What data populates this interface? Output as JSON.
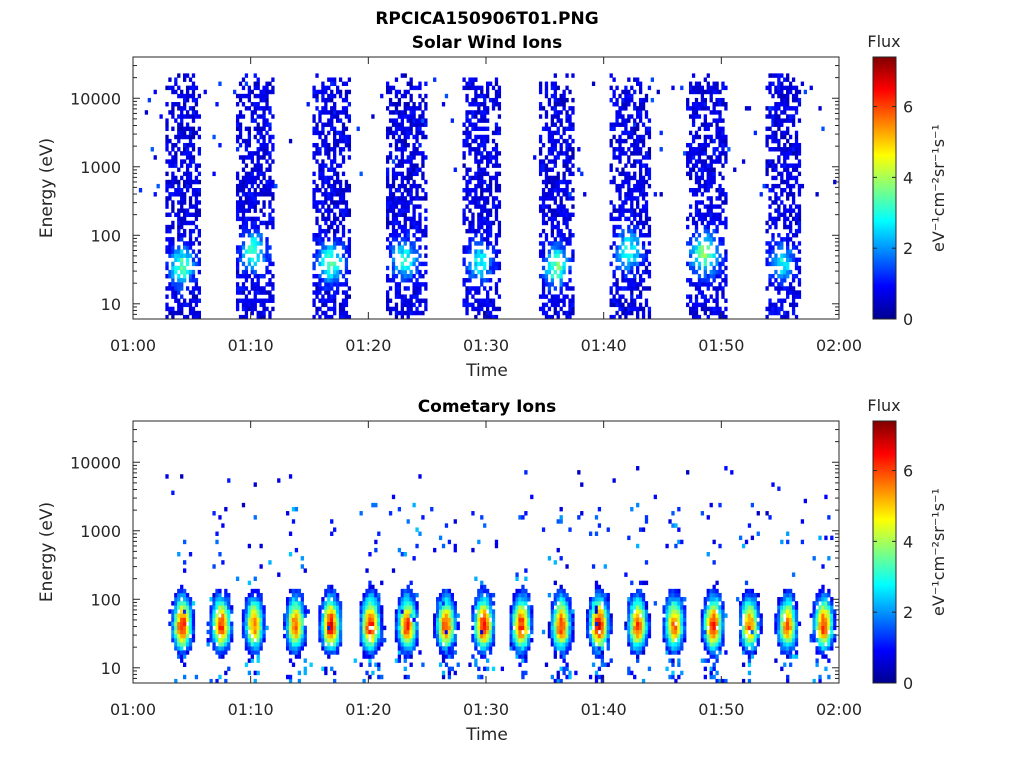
{
  "figure_title": "RPCICA150906T01.PNG",
  "chart_data": [
    {
      "type": "heatmap",
      "title": "Solar Wind Ions",
      "xlabel": "Time",
      "ylabel": "Energy (eV)",
      "x_range": [
        "01:00",
        "02:00"
      ],
      "x_ticks": [
        "01:00",
        "01:10",
        "01:20",
        "01:30",
        "01:40",
        "01:50",
        "02:00"
      ],
      "y_scale": "log",
      "y_range": [
        6,
        40000
      ],
      "y_ticks": [
        "10",
        "100",
        "1000",
        "10000"
      ],
      "grid": false,
      "colorbar": {
        "title": "Flux",
        "label": "eV⁻¹cm⁻²sr⁻¹s⁻¹",
        "range": [
          0,
          7.4
        ],
        "ticks": [
          "0",
          "2",
          "4",
          "6"
        ],
        "colormap": "jet"
      },
      "bursts": [
        {
          "start_min": 2.8,
          "end_min": 5.8,
          "emax_ev": 15000,
          "peak_flux": 3.0,
          "peak_energy_ev": 35
        },
        {
          "start_min": 8.8,
          "end_min": 12.0,
          "emax_ev": 15000,
          "peak_flux": 2.8,
          "peak_energy_ev": 60
        },
        {
          "start_min": 15.3,
          "end_min": 18.6,
          "emax_ev": 15000,
          "peak_flux": 3.0,
          "peak_energy_ev": 40
        },
        {
          "start_min": 21.5,
          "end_min": 25.0,
          "emax_ev": 15000,
          "peak_flux": 2.6,
          "peak_energy_ev": 45
        },
        {
          "start_min": 28.0,
          "end_min": 31.2,
          "emax_ev": 15000,
          "peak_flux": 2.4,
          "peak_energy_ev": 40
        },
        {
          "start_min": 34.6,
          "end_min": 37.6,
          "emax_ev": 15000,
          "peak_flux": 3.2,
          "peak_energy_ev": 35
        },
        {
          "start_min": 40.6,
          "end_min": 44.0,
          "emax_ev": 15000,
          "peak_flux": 2.6,
          "peak_energy_ev": 60
        },
        {
          "start_min": 47.0,
          "end_min": 50.6,
          "emax_ev": 15000,
          "peak_flux": 3.4,
          "peak_energy_ev": 55
        },
        {
          "start_min": 53.8,
          "end_min": 56.8,
          "emax_ev": 15000,
          "peak_flux": 2.4,
          "peak_energy_ev": 40
        }
      ]
    },
    {
      "type": "heatmap",
      "title": "Cometary Ions",
      "xlabel": "Time",
      "ylabel": "Energy (eV)",
      "x_range": [
        "01:00",
        "02:00"
      ],
      "x_ticks": [
        "01:00",
        "01:10",
        "01:20",
        "01:30",
        "01:40",
        "01:50",
        "02:00"
      ],
      "y_scale": "log",
      "y_range": [
        6,
        40000
      ],
      "y_ticks": [
        "10",
        "100",
        "1000",
        "10000"
      ],
      "grid": false,
      "colorbar": {
        "title": "Flux",
        "label": "eV⁻¹cm⁻²sr⁻¹s⁻¹",
        "range": [
          0,
          7.4
        ],
        "ticks": [
          "0",
          "2",
          "4",
          "6"
        ],
        "colormap": "jet"
      },
      "bursts": [
        {
          "center_min": 4.2,
          "peak_flux": 6.4,
          "peak_energy_ev": 40
        },
        {
          "center_min": 7.5,
          "peak_flux": 6.2,
          "peak_energy_ev": 40
        },
        {
          "center_min": 10.3,
          "peak_flux": 5.6,
          "peak_energy_ev": 40
        },
        {
          "center_min": 13.8,
          "peak_flux": 5.8,
          "peak_energy_ev": 40
        },
        {
          "center_min": 16.8,
          "peak_flux": 6.6,
          "peak_energy_ev": 40
        },
        {
          "center_min": 20.2,
          "peak_flux": 6.6,
          "peak_energy_ev": 40
        },
        {
          "center_min": 23.3,
          "peak_flux": 6.2,
          "peak_energy_ev": 40
        },
        {
          "center_min": 26.6,
          "peak_flux": 6.0,
          "peak_energy_ev": 40
        },
        {
          "center_min": 29.8,
          "peak_flux": 6.6,
          "peak_energy_ev": 40
        },
        {
          "center_min": 33.0,
          "peak_flux": 6.4,
          "peak_energy_ev": 40
        },
        {
          "center_min": 36.4,
          "peak_flux": 6.2,
          "peak_energy_ev": 40
        },
        {
          "center_min": 39.6,
          "peak_flux": 6.8,
          "peak_energy_ev": 40
        },
        {
          "center_min": 42.9,
          "peak_flux": 6.0,
          "peak_energy_ev": 40
        },
        {
          "center_min": 46.0,
          "peak_flux": 5.8,
          "peak_energy_ev": 40
        },
        {
          "center_min": 49.3,
          "peak_flux": 6.4,
          "peak_energy_ev": 40
        },
        {
          "center_min": 52.4,
          "peak_flux": 5.8,
          "peak_energy_ev": 40
        },
        {
          "center_min": 55.6,
          "peak_flux": 5.8,
          "peak_energy_ev": 40
        },
        {
          "center_min": 58.7,
          "peak_flux": 6.2,
          "peak_energy_ev": 40
        }
      ]
    }
  ]
}
